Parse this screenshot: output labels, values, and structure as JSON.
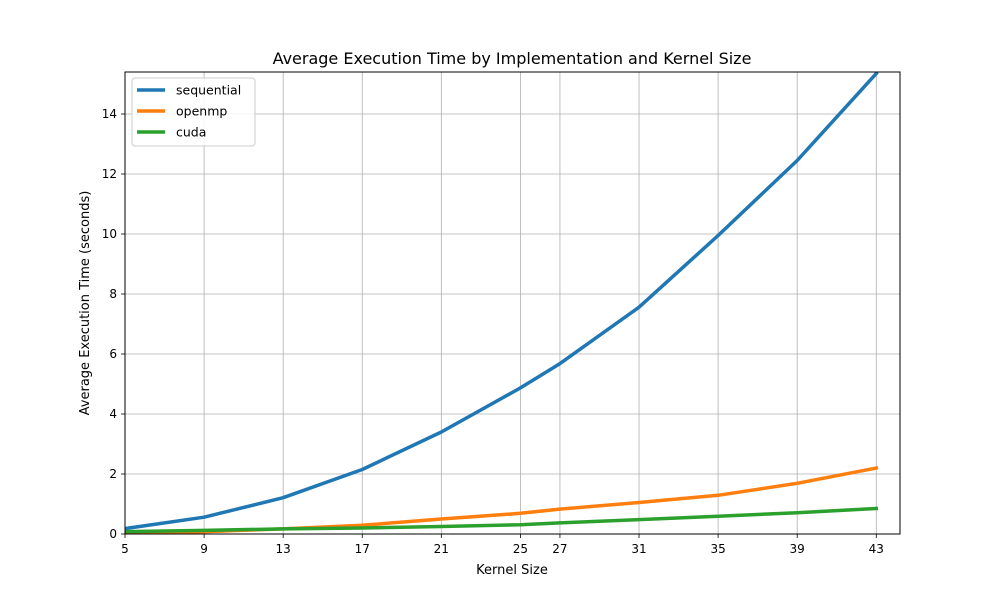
{
  "chart_data": {
    "type": "line",
    "title": "Average Execution Time by Implementation and Kernel Size",
    "xlabel": "Kernel Size",
    "ylabel": "Average Execution Time (seconds)",
    "x": [
      5,
      9,
      13,
      17,
      21,
      25,
      27,
      31,
      35,
      39,
      43
    ],
    "xticks": [
      "5",
      "9",
      "13",
      "17",
      "21",
      "25",
      "27",
      "31",
      "35",
      "39",
      "43"
    ],
    "yticks": [
      "0",
      "2",
      "4",
      "6",
      "8",
      "10",
      "12",
      "14"
    ],
    "xlim": [
      5,
      44.2
    ],
    "ylim": [
      0,
      15.4
    ],
    "grid": true,
    "legend_position": "top-left",
    "series": [
      {
        "name": "sequential",
        "color": "#1f77b4",
        "values": [
          0.18,
          0.56,
          1.21,
          2.15,
          3.4,
          4.87,
          5.68,
          7.56,
          9.95,
          12.45,
          15.35
        ]
      },
      {
        "name": "openmp",
        "color": "#ff7f0e",
        "values": [
          0.03,
          0.08,
          0.17,
          0.29,
          0.5,
          0.69,
          0.83,
          1.05,
          1.29,
          1.69,
          2.2
        ]
      },
      {
        "name": "cuda",
        "color": "#2ca02c",
        "values": [
          0.08,
          0.12,
          0.17,
          0.2,
          0.25,
          0.31,
          0.37,
          0.48,
          0.59,
          0.71,
          0.85
        ]
      }
    ]
  }
}
